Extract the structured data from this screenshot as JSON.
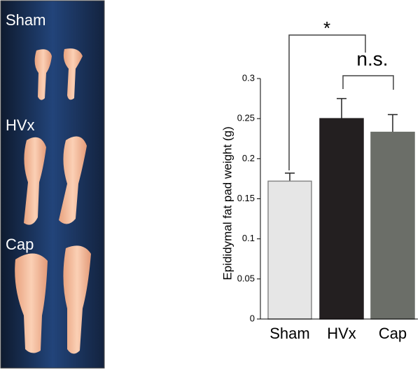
{
  "photo_panel": {
    "labels": [
      "Sham",
      "HVx",
      "Cap"
    ]
  },
  "chart_data": {
    "type": "bar",
    "y_label": "Epididymal fat pad weight (g)",
    "categories": [
      "Sham",
      "HVx",
      "Cap"
    ],
    "values": [
      0.172,
      0.25,
      0.233
    ],
    "errors": [
      0.01,
      0.025,
      0.022
    ],
    "colors": [
      "#e6e6e6",
      "#231f20",
      "#6b6e68"
    ],
    "ylim": [
      0,
      0.3
    ],
    "yticks": [
      0,
      0.05,
      0.1,
      0.15,
      0.2,
      0.25,
      0.3
    ],
    "annotations": [
      "*",
      "n.s."
    ]
  }
}
